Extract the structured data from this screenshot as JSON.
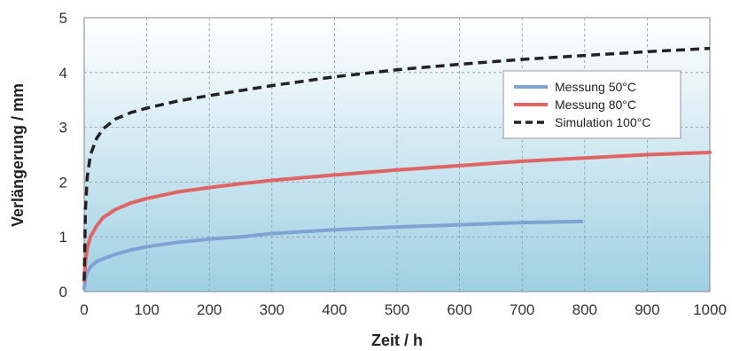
{
  "chart_data": {
    "type": "line",
    "title": "",
    "xlabel": "Zeit / h",
    "ylabel": "Verlängerung / mm",
    "xlim": [
      0,
      1000
    ],
    "ylim": [
      0,
      5
    ],
    "xticks": [
      "0",
      "100",
      "200",
      "300",
      "400",
      "500",
      "600",
      "700",
      "800",
      "900",
      "1000"
    ],
    "yticks": [
      "0",
      "1",
      "2",
      "3",
      "4",
      "5"
    ],
    "grid": true,
    "legend_position": "top-right",
    "series": [
      {
        "name": "Messung 50°C",
        "color": "#7fa3d4",
        "style": "solid",
        "x": [
          0,
          2,
          5,
          10,
          20,
          30,
          50,
          75,
          100,
          150,
          200,
          250,
          300,
          400,
          500,
          600,
          700,
          795
        ],
        "y": [
          0.05,
          0.25,
          0.35,
          0.45,
          0.55,
          0.6,
          0.68,
          0.76,
          0.82,
          0.9,
          0.96,
          1.0,
          1.06,
          1.13,
          1.18,
          1.22,
          1.26,
          1.28
        ]
      },
      {
        "name": "Messung 80°C",
        "color": "#e06464",
        "style": "solid",
        "x": [
          0,
          2,
          5,
          10,
          20,
          30,
          50,
          75,
          100,
          150,
          200,
          250,
          300,
          400,
          500,
          600,
          700,
          800,
          900,
          1000
        ],
        "y": [
          0.2,
          0.55,
          0.8,
          1.0,
          1.2,
          1.35,
          1.5,
          1.62,
          1.7,
          1.82,
          1.9,
          1.97,
          2.03,
          2.13,
          2.22,
          2.3,
          2.38,
          2.44,
          2.5,
          2.54
        ]
      },
      {
        "name": "Simulation 100°C",
        "color": "#222222",
        "style": "dashed",
        "x": [
          0,
          2,
          5,
          10,
          20,
          30,
          50,
          75,
          100,
          150,
          200,
          250,
          300,
          400,
          500,
          600,
          700,
          800,
          900,
          1000
        ],
        "y": [
          0.2,
          1.5,
          2.1,
          2.5,
          2.8,
          2.97,
          3.15,
          3.27,
          3.35,
          3.48,
          3.58,
          3.67,
          3.76,
          3.92,
          4.05,
          4.15,
          4.24,
          4.31,
          4.38,
          4.44
        ]
      }
    ]
  }
}
